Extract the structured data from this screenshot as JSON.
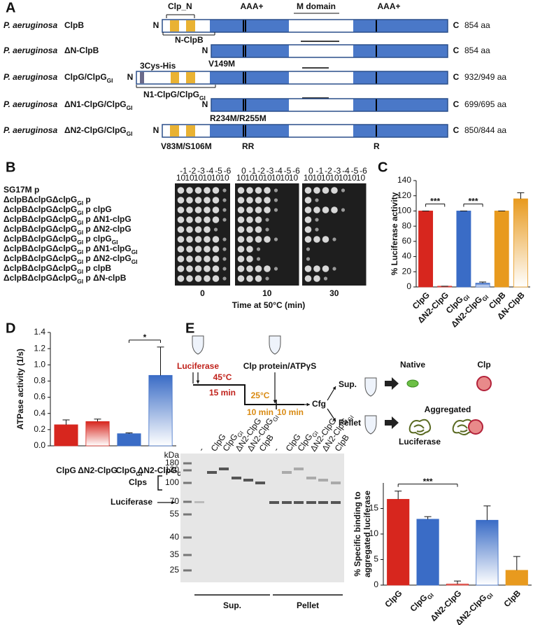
{
  "panel_labels": [
    "A",
    "B",
    "C",
    "D",
    "E"
  ],
  "constructs": {
    "header": {
      "clp_n": "Clp_N",
      "aaa_1": "AAA+",
      "m_domain": "M domain",
      "aaa_2": "AAA+"
    },
    "rows": [
      {
        "species": "P. aeruginosa",
        "name": "ClpB",
        "n": "N",
        "c": "C",
        "length": "854 aa",
        "notes": [
          "N-ClpB"
        ]
      },
      {
        "species": "P. aeruginosa",
        "name": "ΔN-ClpB",
        "n": "N",
        "c": "C",
        "length": "854 aa",
        "notes": [
          "V149M"
        ]
      },
      {
        "species": "P. aeruginosa",
        "name": [
          "ClpG/ClpG",
          {
            "sub": "GI"
          }
        ],
        "n": "N",
        "c": "C",
        "length": "932/949 aa",
        "notes": [
          "3Cys-His",
          [
            "N1-ClpG/ClpG",
            {
              "sub": "GI"
            }
          ]
        ]
      },
      {
        "species": "P. aeruginosa",
        "name": [
          "ΔN1-ClpG/ClpG",
          {
            "sub": "GI"
          }
        ],
        "n": "N",
        "c": "C",
        "length": "699/695 aa",
        "notes": [
          "R234M/R255M"
        ]
      },
      {
        "species": "P. aeruginosa",
        "name": [
          "ΔN2-ClpG/ClpG",
          {
            "sub": "GI"
          }
        ],
        "n": "N",
        "c": "C",
        "length": "850/844 aa",
        "notes": [
          "V83M/S106M",
          "RR",
          "R"
        ]
      }
    ]
  },
  "spot_assay": {
    "base": "10",
    "plates": [
      {
        "time": "0",
        "exponents": [
          "-1",
          "-2",
          "-3",
          "-4",
          "-5",
          "-6"
        ]
      },
      {
        "time": "10",
        "exponents": [
          "0",
          "-1",
          "-2",
          "-3",
          "-4",
          "-5",
          "-6"
        ]
      },
      {
        "time": "30",
        "exponents": [
          "0",
          "-1",
          "-2",
          "-3",
          "-4",
          "-5",
          "-6"
        ]
      }
    ],
    "strains": [
      "SG17M p",
      [
        "ΔclpBΔclpGΔclpG",
        {
          "sub": "GI"
        },
        " p"
      ],
      [
        "ΔclpBΔclpGΔclpG",
        {
          "sub": "GI"
        },
        " p clpG"
      ],
      [
        "ΔclpBΔclpGΔclpG",
        {
          "sub": "GI"
        },
        " p ΔN1-clpG"
      ],
      [
        "ΔclpBΔclpGΔclpG",
        {
          "sub": "GI"
        },
        " p ΔN2-clpG"
      ],
      [
        "ΔclpBΔclpGΔclpG",
        {
          "sub": "GI"
        },
        " p clpG",
        {
          "sub": "GI"
        }
      ],
      [
        "ΔclpBΔclpGΔclpG",
        {
          "sub": "GI"
        },
        " p ΔN1-clpG",
        {
          "sub": "GI"
        }
      ],
      [
        "ΔclpBΔclpGΔclpG",
        {
          "sub": "GI"
        },
        " p ΔN2-clpG",
        {
          "sub": "GI"
        }
      ],
      [
        "ΔclpBΔclpGΔclpG",
        {
          "sub": "GI"
        },
        " p clpB"
      ],
      [
        "ΔclpBΔclpGΔclpG",
        {
          "sub": "GI"
        },
        " p ΔN-clpB"
      ]
    ],
    "xlabel": "Time at 50°C (min)"
  },
  "scheme": {
    "luciferase": "Luciferase",
    "clp_protein": "Clp protein/ATPγS",
    "t1": "45°C",
    "d1": "15 min",
    "t2": "25°C",
    "d2": "10 min",
    "d3": "10 min",
    "cfg": "Cfg",
    "sup": "Sup.",
    "pellet": "Pellet",
    "native": "Native",
    "clp": "Clp",
    "aggregated": "Aggregated",
    "aggregated_luciferase": "Luciferase"
  },
  "gel": {
    "kda": "kDa",
    "markers": [
      "180",
      "130",
      "100",
      "70",
      "55",
      "40",
      "35",
      "25"
    ],
    "lanes": [
      "-",
      "ClpG",
      [
        "ClpG",
        {
          "sub": "GI"
        }
      ],
      "ΔN2-ClpG",
      [
        "ΔN2-ClpG",
        {
          "sub": "GI"
        }
      ],
      "ClpB",
      "-",
      "ClpG",
      [
        "ClpG",
        {
          "sub": "GI"
        }
      ],
      "ΔN2-ClpG",
      [
        "ΔN2-ClpG",
        {
          "sub": "GI"
        }
      ],
      "ClpB"
    ],
    "clps": "Clps",
    "luciferase": "Luciferase",
    "groups": [
      "Sup.",
      "Pellet"
    ]
  },
  "chart_data": [
    {
      "type": "bar",
      "ylabel": "% Luciferase activity",
      "categories": [
        "ClpG",
        "ΔN2-ClpG",
        [
          "ClpG",
          {
            "sub": "GI"
          }
        ],
        [
          "ΔN2-ClpG",
          {
            "sub": "GI"
          }
        ],
        "ClpB",
        "ΔN-ClpB"
      ],
      "values": [
        100,
        1,
        100,
        5,
        100,
        116
      ],
      "errors": [
        0,
        0,
        0,
        1.5,
        0,
        8
      ],
      "colors": [
        "#d7261e",
        "#d7261e",
        "#3a6cc6",
        "#3a6cc6",
        "#e89a1e",
        "#e89a1e"
      ],
      "styles": [
        "solid",
        "gradient",
        "solid",
        "gradient",
        "solid",
        "gradient"
      ],
      "ylim": [
        0,
        140
      ],
      "yticks": [
        0,
        20,
        40,
        60,
        80,
        100,
        120,
        140
      ],
      "annotations": [
        {
          "text": "***",
          "from": 0,
          "to": 1
        },
        {
          "text": "***",
          "from": 2,
          "to": 3
        }
      ]
    },
    {
      "type": "bar",
      "ylabel": "ATPase activity (1/s)",
      "categories": [
        "ClpG",
        "ΔN2-ClpG",
        [
          "ClpG",
          {
            "sub": "GI"
          }
        ],
        [
          "ΔN2-ClpG",
          {
            "sub": "GI"
          }
        ]
      ],
      "values": [
        0.26,
        0.3,
        0.15,
        0.87
      ],
      "errors": [
        0.06,
        0.03,
        0.01,
        0.35
      ],
      "colors": [
        "#d7261e",
        "#d7261e",
        "#3a6cc6",
        "#3a6cc6"
      ],
      "styles": [
        "solid",
        "gradient",
        "solid",
        "gradient"
      ],
      "ylim": [
        0,
        1.4
      ],
      "yticks": [
        {
          "value": 0,
          "label": "0.0"
        },
        0.2,
        0.4,
        0.6,
        0.8,
        {
          "value": 1,
          "label": "1.0"
        },
        1.2,
        1.4
      ],
      "annotations": [
        {
          "text": "*",
          "from": 2,
          "to": 3
        }
      ]
    },
    {
      "type": "bar",
      "ylabel": [
        "% Specific binding to",
        "aggregated luciferase"
      ],
      "categories": [
        "ClpG",
        [
          "ClpG",
          {
            "sub": "GI"
          }
        ],
        "ΔN2-ClpG",
        [
          "ΔN2-ClpG",
          {
            "sub": "GI"
          }
        ],
        "ClpB"
      ],
      "values": [
        16.8,
        12.9,
        0.2,
        12.7,
        2.9
      ],
      "errors": [
        1.6,
        0.5,
        0.6,
        2.8,
        2.7
      ],
      "colors": [
        "#d7261e",
        "#3a6cc6",
        "#d7261e",
        "#3a6cc6",
        "#e89a1e"
      ],
      "styles": [
        "solid",
        "solid",
        "gradient",
        "gradient",
        "solid"
      ],
      "ylim": [
        0,
        20
      ],
      "yticks": [
        0,
        5,
        10,
        15
      ],
      "annotations": [
        {
          "text": "***",
          "from": 0,
          "to": 2
        }
      ]
    }
  ]
}
